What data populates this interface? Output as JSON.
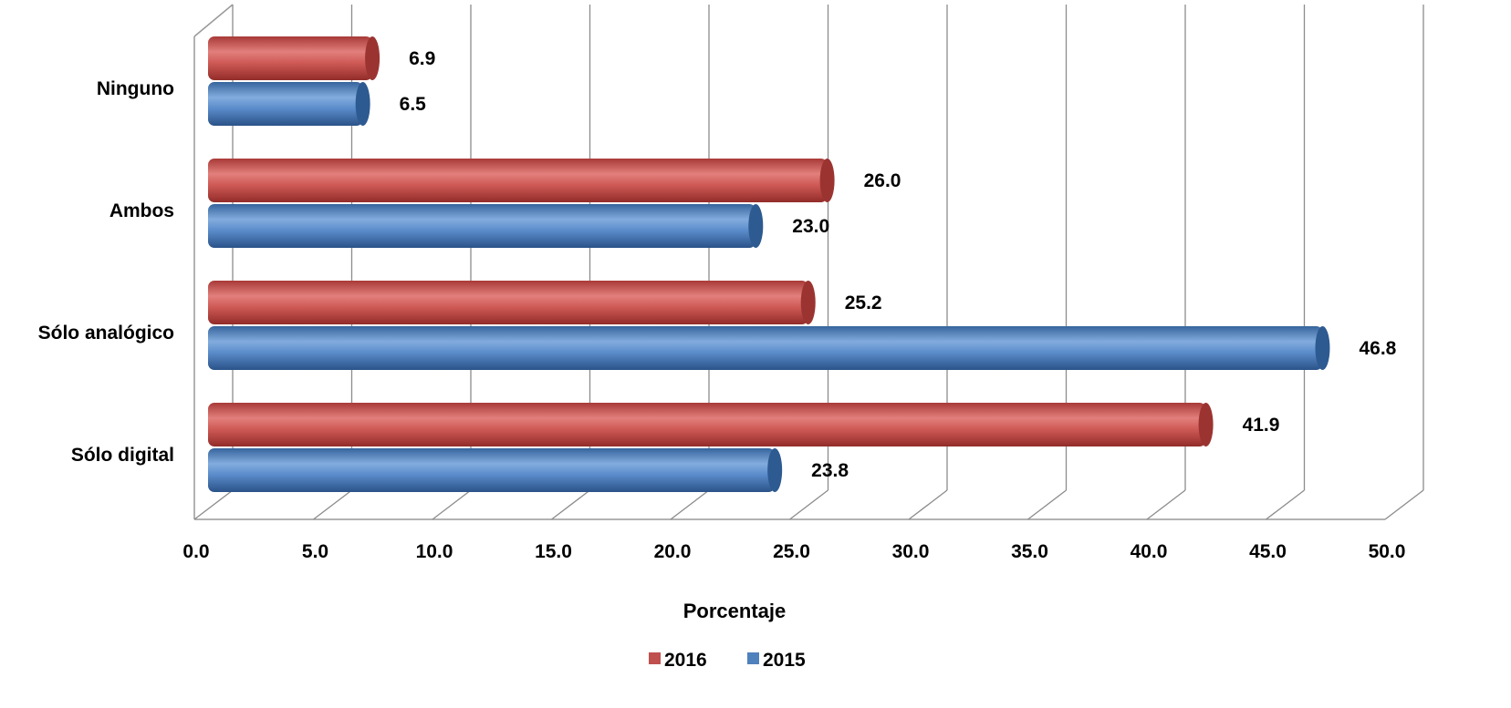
{
  "chart_data": {
    "type": "bar",
    "orientation": "horizontal",
    "categories": [
      "Ninguno",
      "Ambos",
      "Sólo analógico",
      "Sólo digital"
    ],
    "series": [
      {
        "name": "2016",
        "values": [
          6.9,
          26.0,
          25.2,
          41.9
        ],
        "color": "#c0504d"
      },
      {
        "name": "2015",
        "values": [
          6.5,
          23.0,
          46.8,
          23.8
        ],
        "color": "#4f81bd"
      }
    ],
    "x_ticks": [
      "0.0",
      "5.0",
      "10.0",
      "15.0",
      "20.0",
      "25.0",
      "30.0",
      "35.0",
      "40.0",
      "45.0",
      "50.0"
    ],
    "xlim": [
      0,
      50
    ],
    "xlabel": "Porcentaje",
    "ylabel": "",
    "title": "",
    "grid": true,
    "legend_position": "bottom"
  }
}
